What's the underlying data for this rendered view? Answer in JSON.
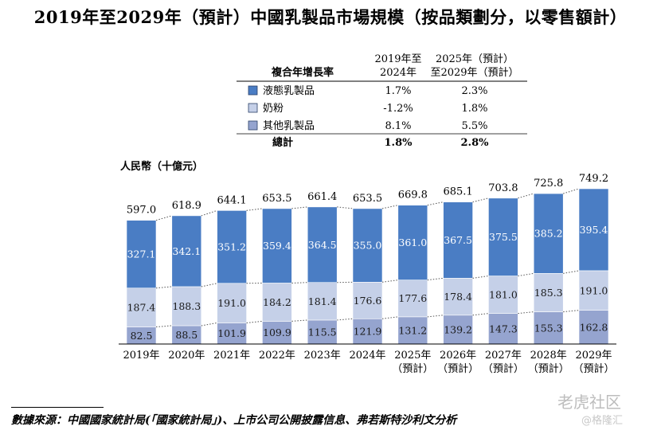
{
  "title": "2019年至2029年（預計）中國乳製品市場規模（按品類劃分，以零售額計）",
  "cagr_table": {
    "header_label": "複合年增長率",
    "col1_header_line1": "2019年至",
    "col1_header_line2": "2024年",
    "col2_header_line1": "2025年（預計）",
    "col2_header_line2": "至2029年（預計）",
    "rows": [
      {
        "name": "液態乳製品",
        "color": "#4a7dc4",
        "cagr1": "1.7%",
        "cagr2": "2.3%"
      },
      {
        "name": "奶粉",
        "color": "#c5d0e8",
        "cagr1": "-1.2%",
        "cagr2": "1.8%"
      },
      {
        "name": "其他乳製品",
        "color": "#95a4cf",
        "cagr1": "8.1%",
        "cagr2": "5.5%"
      }
    ],
    "total": {
      "name": "總計",
      "cagr1": "1.8%",
      "cagr2": "2.8%"
    }
  },
  "chart_data": {
    "type": "bar",
    "stacked": true,
    "ylabel": "人民幣（十億元）",
    "categories": [
      "2019年",
      "2020年",
      "2021年",
      "2022年",
      "2023年",
      "2024年",
      "2025年",
      "2026年",
      "2027年",
      "2028年",
      "2029年"
    ],
    "category_sublabels": [
      "",
      "",
      "",
      "",
      "",
      "",
      "（預計）",
      "（預計）",
      "（預計）",
      "（預計）",
      "（預計）"
    ],
    "series": [
      {
        "name": "其他乳製品",
        "color": "#95a4cf",
        "values": [
          82.5,
          88.5,
          101.9,
          109.9,
          115.5,
          121.9,
          131.2,
          139.2,
          147.3,
          155.3,
          162.8
        ]
      },
      {
        "name": "奶粉",
        "color": "#c5d0e8",
        "values": [
          187.4,
          188.3,
          191.0,
          184.2,
          181.4,
          176.6,
          177.6,
          178.4,
          181.0,
          185.3,
          191.0
        ]
      },
      {
        "name": "液態乳製品",
        "color": "#4a7dc4",
        "values": [
          327.1,
          342.1,
          351.2,
          359.4,
          364.5,
          355.0,
          361.0,
          367.5,
          375.5,
          385.2,
          395.4
        ]
      }
    ],
    "series_labels": [
      [
        "82.5",
        "88.5",
        "101.9",
        "109.9",
        "115.5",
        "121.9",
        "131.2",
        "139.2",
        "147.3",
        "155.3",
        "162.8"
      ],
      [
        "187.4",
        "188.3",
        "191.0",
        "184.2",
        "181.4",
        "176.6",
        "177.6",
        "178.4",
        "181.0",
        "185.3",
        "191.0"
      ],
      [
        "327.1",
        "342.1",
        "351.2",
        "359.4",
        "364.5",
        "355.0",
        "361.0",
        "367.5",
        "375.5",
        "385.2",
        "395.4"
      ]
    ],
    "totals": [
      597.0,
      618.9,
      644.1,
      653.5,
      661.4,
      653.5,
      669.8,
      685.1,
      703.8,
      725.8,
      749.2
    ],
    "total_labels": [
      "597.0",
      "618.9",
      "644.1",
      "653.5",
      "661.4",
      "653.5",
      "669.8",
      "685.1",
      "703.8",
      "725.8",
      "749.2"
    ],
    "ylim": [
      0,
      760
    ],
    "grid": false,
    "y_axis_visible": false,
    "connector_lines": "dotted"
  },
  "source": "數據來源：中國國家統計局(「國家統計局」)、上市公司公開披露信息、弗若斯特沙利文分析",
  "watermark": {
    "text": "老虎社区",
    "sub": "@格隆汇"
  }
}
